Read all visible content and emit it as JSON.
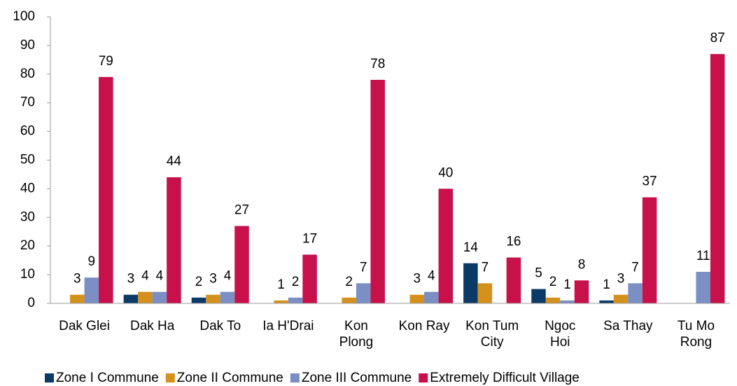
{
  "chart_data": {
    "type": "bar",
    "categories": [
      "Dak Glei",
      "Dak Ha",
      "Dak To",
      "Ia H'Drai",
      "Kon\nPlong",
      "Kon Ray",
      "Kon Tum\nCity",
      "Ngoc\nHoi",
      "Sa Thay",
      "Tu Mo\nRong"
    ],
    "series": [
      {
        "name": "Zone I Commune",
        "color": "#0b3a66",
        "values": [
          0,
          3,
          2,
          0,
          0,
          0,
          14,
          5,
          1,
          0
        ]
      },
      {
        "name": "Zone II Commune",
        "color": "#d4911c",
        "values": [
          3,
          4,
          3,
          1,
          2,
          3,
          7,
          2,
          3,
          0
        ]
      },
      {
        "name": "Zone III Commune",
        "color": "#7b8fc4",
        "values": [
          9,
          4,
          4,
          2,
          7,
          4,
          0,
          1,
          7,
          11
        ]
      },
      {
        "name": "Extremely Difficult Village",
        "color": "#c8104a",
        "values": [
          79,
          44,
          27,
          17,
          78,
          40,
          16,
          8,
          37,
          87
        ]
      }
    ],
    "ylim": [
      0,
      100
    ],
    "yticks": [
      0,
      10,
      20,
      30,
      40,
      50,
      60,
      70,
      80,
      90,
      100
    ],
    "grid": false,
    "legend": "bottom"
  }
}
